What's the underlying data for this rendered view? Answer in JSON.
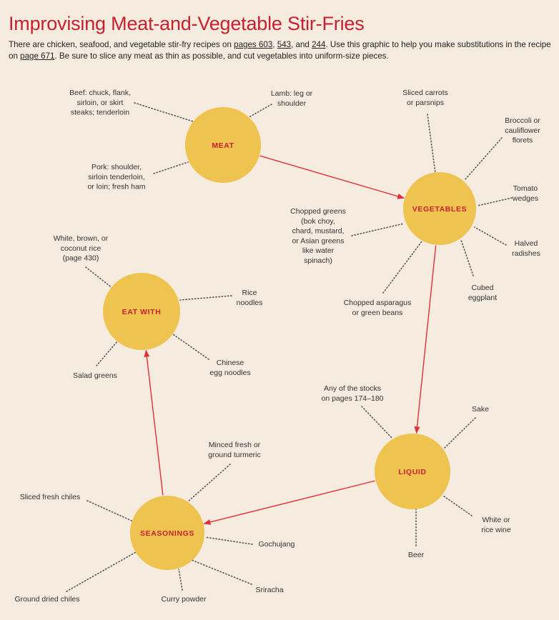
{
  "title": "Improvising Meat-and-Vegetable Stir-Fries",
  "intro": {
    "part1": "There are chicken, seafood, and vegetable stir-fry recipes on ",
    "ref1": "pages 603",
    "sep1": ", ",
    "ref2": "543",
    "sep2": ", and ",
    "ref3": "244",
    "part2": ". Use this graphic to help you make substitutions in the recipe on ",
    "ref4": "page 671",
    "part3": ". Be sure to slice any meat as thin as possible, and cut vegetables into uniform-size pieces."
  },
  "colors": {
    "node_fill": "#eec34f",
    "node_text": "#c8202e",
    "arrow": "#e0303a",
    "dots": "#555555",
    "background": "#f5ebdf"
  },
  "nodes": [
    {
      "id": "meat",
      "label": "MEAT"
    },
    {
      "id": "vegetables",
      "label": "VEGETABLES"
    },
    {
      "id": "eat_with",
      "label": "EAT WITH"
    },
    {
      "id": "liquid",
      "label": "LIQUID"
    },
    {
      "id": "seasonings",
      "label": "SEASONINGS"
    }
  ],
  "flow": [
    "meat",
    "vegetables",
    "liquid",
    "seasonings",
    "eat_with"
  ],
  "leaves": {
    "meat": [
      {
        "id": "beef",
        "lines": [
          "Beef: chuck, flank,",
          "sirloin, or skirt",
          "steaks; tenderloin"
        ]
      },
      {
        "id": "lamb",
        "lines": [
          "Lamb: leg or",
          "shoulder"
        ]
      },
      {
        "id": "pork",
        "lines": [
          "Pork: shoulder,",
          "sirloin tenderloin,",
          "or loin; fresh ham"
        ]
      }
    ],
    "vegetables": [
      {
        "id": "carrots",
        "lines": [
          "Sliced carrots",
          "or parsnips"
        ]
      },
      {
        "id": "broccoli",
        "lines": [
          "Broccoli or",
          "cauliflower",
          "florets"
        ]
      },
      {
        "id": "tomato",
        "lines": [
          "Tomato",
          "wedges"
        ]
      },
      {
        "id": "radishes",
        "lines": [
          "Halved",
          "radishes"
        ]
      },
      {
        "id": "eggplant",
        "lines": [
          "Cubed",
          "eggplant"
        ]
      },
      {
        "id": "asparagus",
        "lines": [
          "Chopped asparagus",
          "or green beans"
        ]
      },
      {
        "id": "greens",
        "lines": [
          "Chopped greens",
          "(bok choy,",
          "chard, mustard,",
          "or Asian greens",
          "like water",
          "spinach)"
        ]
      }
    ],
    "eat_with": [
      {
        "id": "rice",
        "lines": [
          "White, brown, or",
          "coconut rice",
          "(page 430)"
        ]
      },
      {
        "id": "rice_noodles",
        "lines": [
          "Rice",
          "noodles"
        ]
      },
      {
        "id": "egg_noodles",
        "lines": [
          "Chinese",
          "egg noodles"
        ]
      },
      {
        "id": "salad",
        "lines": [
          "Salad greens"
        ]
      }
    ],
    "liquid": [
      {
        "id": "stocks",
        "lines": [
          "Any of the stocks",
          "on pages 174–180"
        ]
      },
      {
        "id": "sake",
        "lines": [
          "Sake"
        ]
      },
      {
        "id": "wine",
        "lines": [
          "White or",
          "rice wine"
        ]
      },
      {
        "id": "beer",
        "lines": [
          "Beer"
        ]
      }
    ],
    "seasonings": [
      {
        "id": "turmeric",
        "lines": [
          "Minced fresh or",
          "ground turmeric"
        ]
      },
      {
        "id": "fresh_chiles",
        "lines": [
          "Sliced fresh chiles"
        ]
      },
      {
        "id": "gochujang",
        "lines": [
          "Gochujang"
        ]
      },
      {
        "id": "sriracha",
        "lines": [
          "Sriracha"
        ]
      },
      {
        "id": "curry",
        "lines": [
          "Curry powder"
        ]
      },
      {
        "id": "dried_chiles",
        "lines": [
          "Ground dried chiles"
        ]
      }
    ]
  }
}
